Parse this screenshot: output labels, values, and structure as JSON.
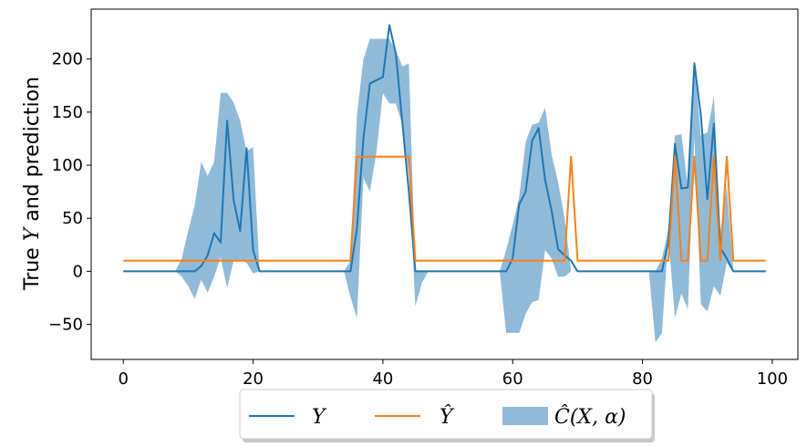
{
  "chart_data": {
    "type": "line",
    "ylabel_parts": [
      "True ",
      "Y",
      " and prediction"
    ],
    "xlim": [
      -4.95,
      103.95
    ],
    "ylim": [
      -83,
      247
    ],
    "xticks": [
      0,
      20,
      40,
      60,
      80,
      100
    ],
    "yticks": [
      -50,
      0,
      50,
      100,
      150,
      200
    ],
    "grid": false,
    "legend": {
      "placement": "bottom-center-outside",
      "entries": [
        "Y",
        "Ŷ",
        "Ĉ(X, α)"
      ]
    },
    "colors": {
      "y": "#1f77b4",
      "yhat": "#ff7f0e",
      "band": "#1f77b4",
      "band_alpha": 0.5
    },
    "x": [
      0,
      1,
      2,
      3,
      4,
      5,
      6,
      7,
      8,
      9,
      10,
      11,
      12,
      13,
      14,
      15,
      16,
      17,
      18,
      19,
      20,
      21,
      22,
      23,
      24,
      25,
      26,
      27,
      28,
      29,
      30,
      31,
      32,
      33,
      34,
      35,
      36,
      37,
      38,
      39,
      40,
      41,
      42,
      43,
      44,
      45,
      46,
      47,
      48,
      49,
      50,
      51,
      52,
      53,
      54,
      55,
      56,
      57,
      58,
      59,
      60,
      61,
      62,
      63,
      64,
      65,
      66,
      67,
      68,
      69,
      70,
      71,
      72,
      73,
      74,
      75,
      76,
      77,
      78,
      79,
      80,
      81,
      82,
      83,
      84,
      85,
      86,
      87,
      88,
      89,
      90,
      91,
      92,
      93,
      94,
      95,
      96,
      97,
      98,
      99
    ],
    "series": [
      {
        "key": "y",
        "values": [
          0,
          0,
          0,
          0,
          0,
          0,
          0,
          0,
          0,
          0,
          0,
          0,
          5,
          15,
          36,
          27,
          142,
          67,
          38,
          116,
          20,
          0,
          0,
          0,
          0,
          0,
          0,
          0,
          0,
          0,
          0,
          0,
          0,
          0,
          0,
          0,
          40,
          125,
          177,
          180,
          183,
          232,
          205,
          140,
          75,
          0,
          0,
          0,
          0,
          0,
          0,
          0,
          0,
          0,
          0,
          0,
          0,
          0,
          0,
          0,
          12,
          63,
          75,
          123,
          135,
          86,
          57,
          21,
          15,
          10,
          0,
          0,
          0,
          0,
          0,
          0,
          0,
          0,
          0,
          0,
          0,
          0,
          0,
          0,
          28,
          120,
          78,
          79,
          196,
          147,
          68,
          139,
          22,
          12,
          0,
          0,
          0,
          0,
          0,
          0
        ]
      },
      {
        "key": "yhat",
        "values": [
          10,
          10,
          10,
          10,
          10,
          10,
          10,
          10,
          10,
          10,
          10,
          10,
          10,
          10,
          10,
          10,
          10,
          10,
          10,
          10,
          10,
          10,
          10,
          10,
          10,
          10,
          10,
          10,
          10,
          10,
          10,
          10,
          10,
          10,
          10,
          10,
          108,
          108,
          108,
          108,
          108,
          108,
          108,
          108,
          108,
          10,
          10,
          10,
          10,
          10,
          10,
          10,
          10,
          10,
          10,
          10,
          10,
          10,
          10,
          10,
          10,
          10,
          10,
          10,
          10,
          10,
          10,
          10,
          10,
          108,
          10,
          10,
          10,
          10,
          10,
          10,
          10,
          10,
          10,
          10,
          10,
          10,
          10,
          10,
          10,
          108,
          10,
          10,
          108,
          10,
          10,
          108,
          10,
          108,
          10,
          10,
          10,
          10,
          10,
          10
        ],
        "band_lower": [
          0,
          0,
          0,
          0,
          0,
          0,
          0,
          0,
          0,
          -5,
          -14,
          -26,
          -8,
          -20,
          -5,
          13,
          -16,
          10,
          11,
          8,
          -2,
          0,
          0,
          0,
          0,
          0,
          0,
          0,
          0,
          0,
          0,
          0,
          0,
          0,
          0,
          -24,
          -44,
          88,
          75,
          112,
          168,
          158,
          158,
          138,
          92,
          -33,
          -11,
          0,
          0,
          0,
          0,
          0,
          0,
          0,
          0,
          0,
          0,
          0,
          0,
          -58,
          -58,
          -58,
          -40,
          -29,
          -27,
          20,
          12,
          -5,
          -5,
          0,
          0,
          0,
          0,
          0,
          0,
          0,
          0,
          0,
          0,
          0,
          0,
          0,
          -67,
          -58,
          32,
          -44,
          -21,
          -36,
          126,
          -31,
          -38,
          -14,
          -23,
          8,
          0,
          0,
          0,
          0,
          0,
          0
        ],
        "band_upper": [
          0,
          0,
          0,
          0,
          0,
          0,
          0,
          0,
          0,
          12,
          38,
          62,
          103,
          90,
          103,
          168,
          168,
          159,
          142,
          113,
          117,
          0,
          0,
          0,
          0,
          0,
          0,
          0,
          0,
          0,
          0,
          0,
          0,
          0,
          0,
          10,
          147,
          200,
          219,
          219,
          219,
          219,
          208,
          193,
          196,
          0,
          0,
          0,
          0,
          0,
          0,
          0,
          0,
          0,
          0,
          0,
          0,
          0,
          0,
          20,
          44,
          70,
          122,
          138,
          140,
          154,
          110,
          84,
          50,
          0,
          0,
          0,
          0,
          0,
          0,
          0,
          0,
          0,
          0,
          0,
          0,
          0,
          0,
          12,
          40,
          128,
          129,
          80,
          196,
          128,
          131,
          165,
          37,
          80,
          0,
          0,
          0,
          0,
          0,
          0
        ]
      }
    ]
  }
}
